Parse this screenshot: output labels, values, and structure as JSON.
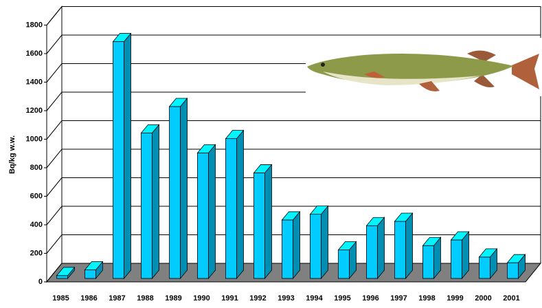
{
  "chart_data": {
    "type": "bar3d",
    "y_label": "Bq/kg w.w.",
    "categories": [
      "1985",
      "1986",
      "1987",
      "1988",
      "1989",
      "1990",
      "1991",
      "1992",
      "1993",
      "1994",
      "1995",
      "1996",
      "1997",
      "1998",
      "1999",
      "2000",
      "2001"
    ],
    "values": [
      20,
      60,
      1660,
      1020,
      1205,
      880,
      980,
      740,
      410,
      450,
      200,
      370,
      400,
      230,
      270,
      150,
      110
    ],
    "color": "#00ccff",
    "ylim": [
      0,
      1800
    ],
    "yticks": [
      0,
      200,
      400,
      600,
      800,
      1000,
      1200,
      1400,
      1600,
      1800
    ],
    "grid": true
  }
}
